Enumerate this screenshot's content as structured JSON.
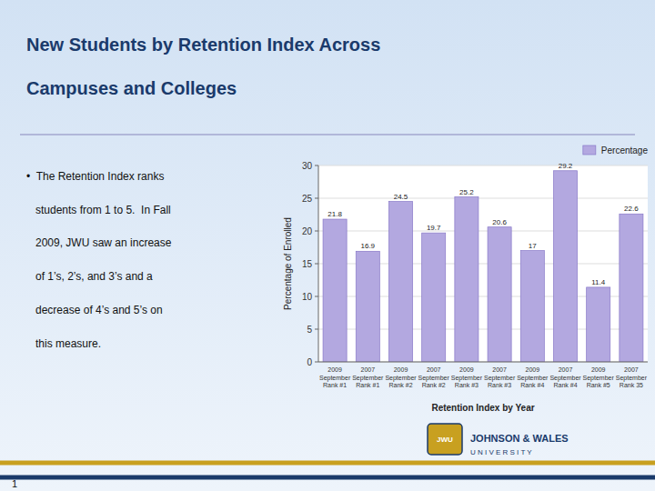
{
  "chart_data": {
    "type": "bar",
    "title": "New Students by Retention Index Across\nCampuses and Colleges",
    "annotations": [
      "•  The Retention Index ranks\n   students from 1 to 5.  In Fall\n   2009, JWU saw an increase\n   of 1’s, 2’s, and 3’s and a\n   decrease of 4’s and 5’s on\n   this measure.",
      "1",
      "JWU",
      "JOHNSON & WALES",
      "U N I V E R S I T Y"
    ],
    "categories": [
      "2009\nSeptember\nRank #1",
      "2007\nSeptember\nRank #1",
      "2009\nSeptember\nRank #2",
      "2007\nSeptember\nRank #2",
      "2009\nSeptember\nRank #3",
      "2007\nSeptember\nRank #3",
      "2009\nSeptember\nRank #4",
      "2007\nSeptember\nRank #4",
      "2009\nSeptember\nRank #5",
      "2007\nSeptember\nRank 35"
    ],
    "series": [
      {
        "name": "Percentage",
        "color": "#b3a8e0",
        "values": [
          21.8,
          16.9,
          24.5,
          19.7,
          25.2,
          20.6,
          17,
          29.2,
          11.4,
          22.6
        ]
      }
    ],
    "xlabel": "Retention Index by Year",
    "ylabel": "Percentage of Enrolled",
    "ylim": [
      0,
      30
    ],
    "yticks": [
      0,
      5,
      10,
      15,
      20,
      25,
      30
    ],
    "grid": true,
    "legend": "upper right",
    "data_labels": true
  }
}
